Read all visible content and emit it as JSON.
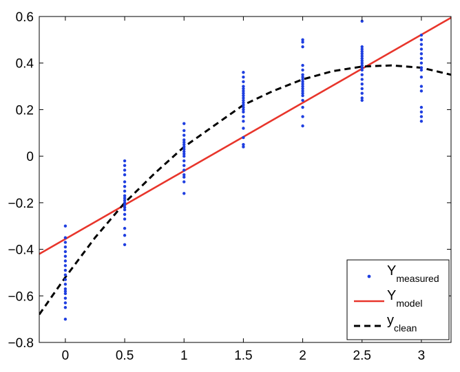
{
  "chart_data": {
    "type": "scatter",
    "xlim": [
      -0.22,
      3.25
    ],
    "ylim": [
      -0.8,
      0.6
    ],
    "xticks": [
      {
        "value": 0,
        "label": "0"
      },
      {
        "value": 0.5,
        "label": "0.5"
      },
      {
        "value": 1,
        "label": "1"
      },
      {
        "value": 1.5,
        "label": "1.5"
      },
      {
        "value": 2,
        "label": "2"
      },
      {
        "value": 2.5,
        "label": "2.5"
      },
      {
        "value": 3,
        "label": "3"
      }
    ],
    "yticks": [
      {
        "value": 0.6,
        "label": "0.6"
      },
      {
        "value": 0.4,
        "label": "0.4"
      },
      {
        "value": 0.2,
        "label": "0.2"
      },
      {
        "value": 0,
        "label": "0"
      },
      {
        "value": -0.2,
        "label": "−0.2"
      },
      {
        "value": -0.4,
        "label": "−0.4"
      },
      {
        "value": -0.6,
        "label": "−0.6"
      },
      {
        "value": -0.8,
        "label": "−0.8"
      }
    ],
    "grid": false,
    "legend_position": "bottom-right",
    "series": [
      {
        "name": "Y",
        "name_sub": "measured",
        "type": "scatter",
        "color": "#1f3fe0",
        "points": [
          {
            "x": 0,
            "values": [
              -0.3,
              -0.35,
              -0.37,
              -0.39,
              -0.41,
              -0.43,
              -0.45,
              -0.47,
              -0.49,
              -0.51,
              -0.53,
              -0.55,
              -0.57,
              -0.58,
              -0.59,
              -0.61,
              -0.63,
              -0.65,
              -0.7
            ]
          },
          {
            "x": 0.5,
            "values": [
              -0.02,
              -0.04,
              -0.06,
              -0.08,
              -0.11,
              -0.13,
              -0.15,
              -0.17,
              -0.18,
              -0.19,
              -0.2,
              -0.21,
              -0.22,
              -0.23,
              -0.25,
              -0.27,
              -0.31,
              -0.34,
              -0.38
            ]
          },
          {
            "x": 1,
            "values": [
              0.14,
              0.11,
              0.09,
              0.07,
              0.06,
              0.05,
              0.04,
              0.03,
              0.02,
              0.01,
              0.0,
              -0.02,
              -0.04,
              -0.06,
              -0.08,
              -0.09,
              -0.11,
              -0.16
            ]
          },
          {
            "x": 1.5,
            "values": [
              0.36,
              0.34,
              0.32,
              0.3,
              0.29,
              0.28,
              0.27,
              0.26,
              0.25,
              0.24,
              0.23,
              0.22,
              0.21,
              0.2,
              0.19,
              0.17,
              0.15,
              0.12,
              0.08,
              0.05,
              0.04
            ]
          },
          {
            "x": 2,
            "values": [
              0.5,
              0.49,
              0.47,
              0.39,
              0.37,
              0.35,
              0.34,
              0.33,
              0.32,
              0.31,
              0.3,
              0.29,
              0.28,
              0.27,
              0.26,
              0.24,
              0.21,
              0.17,
              0.13
            ]
          },
          {
            "x": 2.5,
            "values": [
              0.58,
              0.47,
              0.46,
              0.45,
              0.44,
              0.43,
              0.42,
              0.41,
              0.4,
              0.39,
              0.38,
              0.37,
              0.35,
              0.33,
              0.31,
              0.29,
              0.27,
              0.25,
              0.24
            ]
          },
          {
            "x": 3,
            "values": [
              0.52,
              0.5,
              0.48,
              0.46,
              0.44,
              0.42,
              0.4,
              0.38,
              0.37,
              0.34,
              0.3,
              0.28,
              0.21,
              0.19,
              0.17,
              0.15
            ]
          }
        ]
      },
      {
        "name": "Y",
        "name_sub": "model",
        "type": "line",
        "color": "#e8352b",
        "x": [
          -0.22,
          3.25
        ],
        "values": [
          -0.42,
          0.595
        ]
      },
      {
        "name": "y",
        "name_sub": "clean",
        "type": "line",
        "style": "dashed",
        "color": "#000000",
        "x": [
          -0.22,
          0,
          0.25,
          0.5,
          0.75,
          1,
          1.25,
          1.5,
          1.75,
          2,
          2.25,
          2.5,
          2.75,
          3,
          3.25
        ],
        "values": [
          -0.68,
          -0.52,
          -0.35,
          -0.2,
          -0.075,
          0.04,
          0.13,
          0.22,
          0.28,
          0.33,
          0.365,
          0.385,
          0.39,
          0.38,
          0.35
        ]
      }
    ]
  }
}
